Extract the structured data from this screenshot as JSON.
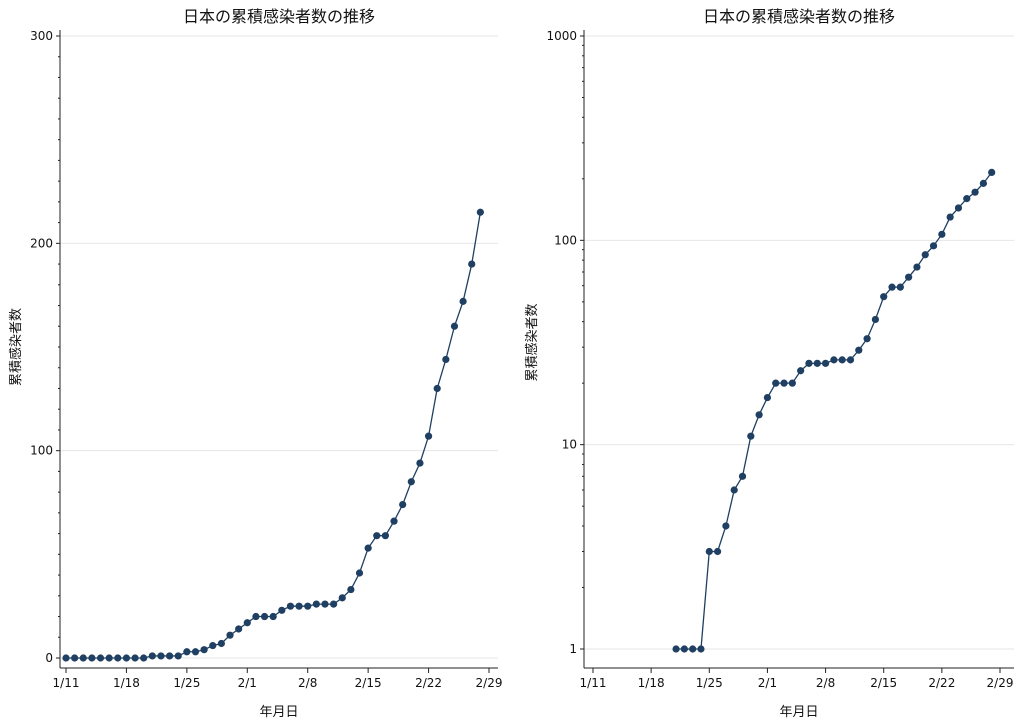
{
  "chart_data": [
    {
      "type": "line",
      "title": "日本の累積感染者数の推移",
      "xlabel": "年月日",
      "ylabel": "累積感染者数",
      "x_ticks": [
        "1/11",
        "1/18",
        "1/25",
        "2/1",
        "2/8",
        "2/15",
        "2/22",
        "2/29"
      ],
      "y_ticks": [
        "0",
        "100",
        "200",
        "300"
      ],
      "ylim": [
        0,
        300
      ],
      "y_scale": "linear",
      "grid": "horizontal",
      "series_color": "#1f3f63",
      "series": [
        {
          "x": [
            "1/11",
            "1/12",
            "1/13",
            "1/14",
            "1/15",
            "1/16",
            "1/17",
            "1/18",
            "1/19",
            "1/20",
            "1/21",
            "1/22",
            "1/23",
            "1/24",
            "1/25",
            "1/26",
            "1/27",
            "1/28",
            "1/29",
            "1/30",
            "1/31",
            "2/1",
            "2/2",
            "2/3",
            "2/4",
            "2/5",
            "2/6",
            "2/7",
            "2/8",
            "2/9",
            "2/10",
            "2/11",
            "2/12",
            "2/13",
            "2/14",
            "2/15",
            "2/16",
            "2/17",
            "2/18",
            "2/19",
            "2/20",
            "2/21",
            "2/22",
            "2/23",
            "2/24",
            "2/25",
            "2/26",
            "2/27",
            "2/28"
          ],
          "values": [
            0,
            0,
            0,
            0,
            0,
            0,
            0,
            0,
            0,
            0,
            1,
            1,
            1,
            1,
            3,
            3,
            4,
            6,
            7,
            11,
            14,
            17,
            20,
            20,
            20,
            23,
            25,
            25,
            25,
            26,
            26,
            26,
            29,
            33,
            41,
            53,
            59,
            59,
            66,
            74,
            85,
            94,
            107,
            130,
            144,
            160,
            172,
            190,
            215
          ]
        }
      ]
    },
    {
      "type": "line",
      "title": "日本の累積感染者数の推移",
      "xlabel": "年月日",
      "ylabel": "累積感染者数",
      "x_ticks": [
        "1/11",
        "1/18",
        "1/25",
        "2/1",
        "2/8",
        "2/15",
        "2/22",
        "2/29"
      ],
      "y_ticks": [
        "1",
        "10",
        "100",
        "1000"
      ],
      "ylim": [
        1,
        1000
      ],
      "y_scale": "log",
      "grid": "horizontal",
      "series_color": "#1f3f63",
      "series": [
        {
          "x": [
            "1/21",
            "1/22",
            "1/23",
            "1/24",
            "1/25",
            "1/26",
            "1/27",
            "1/28",
            "1/29",
            "1/30",
            "1/31",
            "2/1",
            "2/2",
            "2/3",
            "2/4",
            "2/5",
            "2/6",
            "2/7",
            "2/8",
            "2/9",
            "2/10",
            "2/11",
            "2/12",
            "2/13",
            "2/14",
            "2/15",
            "2/16",
            "2/17",
            "2/18",
            "2/19",
            "2/20",
            "2/21",
            "2/22",
            "2/23",
            "2/24",
            "2/25",
            "2/26",
            "2/27",
            "2/28"
          ],
          "values": [
            1,
            1,
            1,
            1,
            3,
            3,
            4,
            6,
            7,
            11,
            14,
            17,
            20,
            20,
            20,
            23,
            25,
            25,
            25,
            26,
            26,
            26,
            29,
            33,
            41,
            53,
            59,
            59,
            66,
            74,
            85,
            94,
            107,
            130,
            144,
            160,
            172,
            190,
            215
          ]
        }
      ]
    }
  ]
}
